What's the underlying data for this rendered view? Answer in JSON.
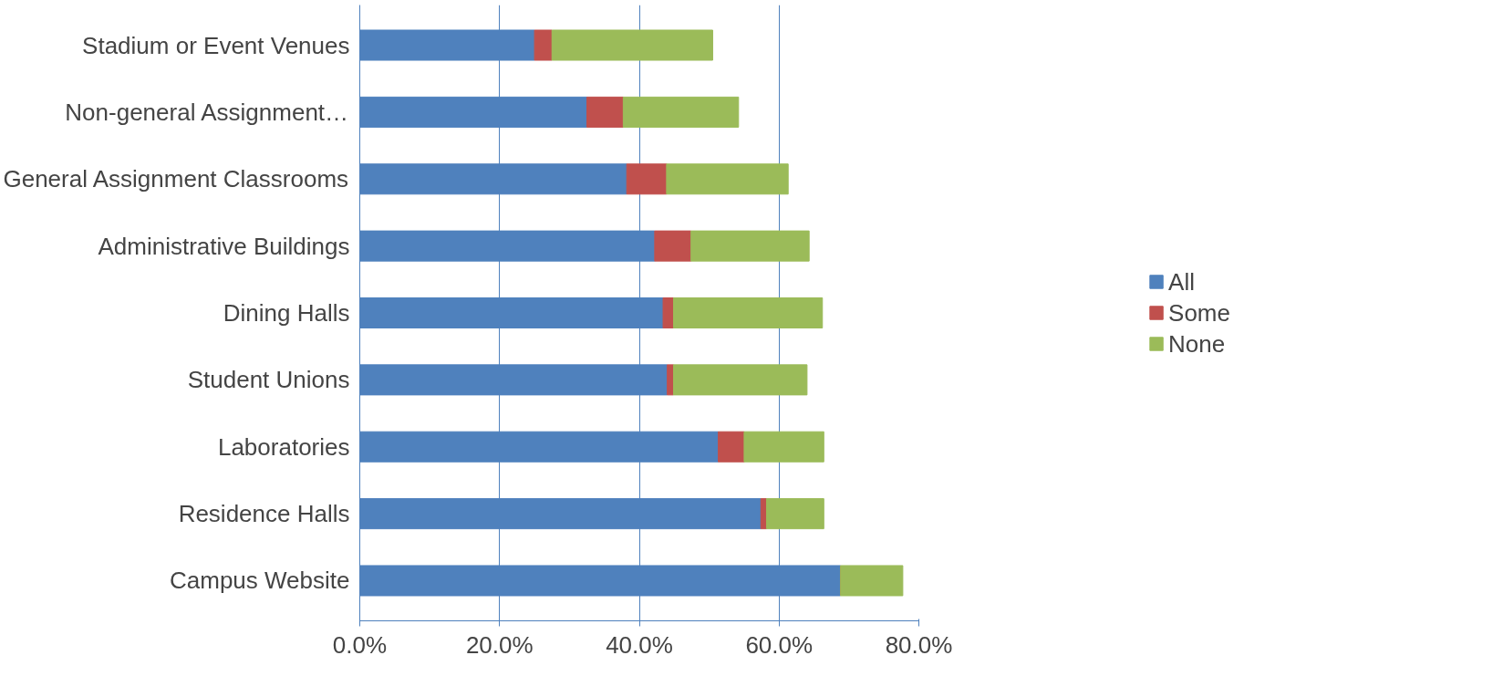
{
  "chart_data": {
    "type": "bar",
    "orientation": "horizontal",
    "stacked": true,
    "categories": [
      "Stadium or Event Venues",
      "Non-general Assignment…",
      "General Assignment Classrooms",
      "Administrative Buildings",
      "Dining Halls",
      "Student Unions",
      "Laboratories",
      "Residence Halls",
      "Campus Website"
    ],
    "series": [
      {
        "name": "All",
        "color": "#4f81bd",
        "values": [
          25,
          32.5,
          38.2,
          42.2,
          43.4,
          44,
          51.3,
          57.4,
          68.8
        ]
      },
      {
        "name": "Some",
        "color": "#c0504d",
        "values": [
          2.5,
          5.2,
          5.7,
          5.2,
          1.5,
          0.9,
          3.7,
          0.8,
          0
        ]
      },
      {
        "name": "None",
        "color": "#9bbb59",
        "values": [
          23,
          16.5,
          17.4,
          16.9,
          21.3,
          19.1,
          11.4,
          8.2,
          8.9
        ]
      }
    ],
    "xlim": [
      0,
      80
    ],
    "xticks": [
      {
        "value": 0,
        "label": "0.0%"
      },
      {
        "value": 20,
        "label": "20.0%"
      },
      {
        "value": 40,
        "label": "40.0%"
      },
      {
        "value": 60,
        "label": "60.0%"
      },
      {
        "value": 80,
        "label": "80.0%"
      }
    ],
    "grid": "x",
    "legend": "right"
  }
}
